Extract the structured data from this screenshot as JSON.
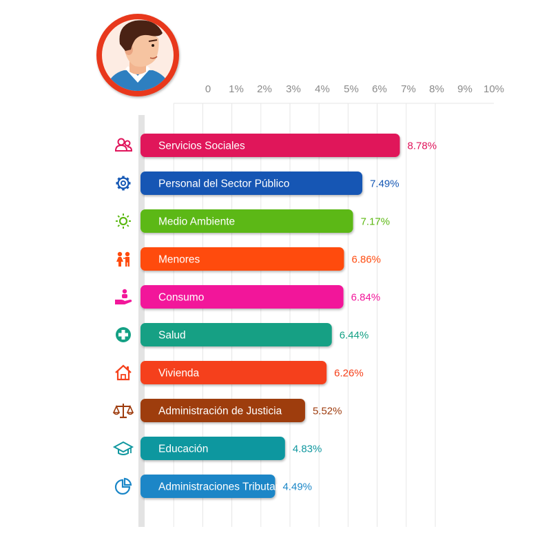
{
  "chart_data": {
    "type": "bar",
    "orientation": "horizontal",
    "title": "",
    "xlabel": "",
    "ylabel": "",
    "xlim": [
      0,
      10
    ],
    "ticks": [
      "0",
      "1%",
      "2%",
      "3%",
      "4%",
      "5%",
      "6%",
      "7%",
      "8%",
      "9%",
      "10%"
    ],
    "grid": true,
    "categories": [
      "Servicios Sociales",
      "Personal del Sector Público",
      "Medio Ambiente",
      "Menores",
      "Consumo",
      "Salud",
      "Vivienda",
      "Administración de Justicia",
      "Educación",
      "Administraciones Tributarias"
    ],
    "values": [
      8.78,
      7.49,
      7.17,
      6.86,
      6.84,
      6.44,
      6.26,
      5.52,
      4.83,
      4.49
    ],
    "value_labels": [
      "8.78%",
      "7.49%",
      "7.17%",
      "6.86%",
      "6.84%",
      "6.44%",
      "6.26%",
      "5.52%",
      "4.83%",
      "4.49%"
    ],
    "colors": [
      "#e0135a",
      "#1457b4",
      "#5cb812",
      "#ff4b0f",
      "#f2179a",
      "#14a084",
      "#f5401a",
      "#9e3c0e",
      "#10979f",
      "#1a86c7"
    ],
    "icons": [
      "people-icon",
      "gear-icon",
      "sun-icon",
      "children-icon",
      "hand-holding-person-icon",
      "medical-cross-icon",
      "house-icon",
      "scales-of-justice-icon",
      "graduation-cap-icon",
      "pie-chart-icon"
    ]
  },
  "avatar": {
    "icon": "person-avatar-icon",
    "ring_color": "#e8391b"
  }
}
